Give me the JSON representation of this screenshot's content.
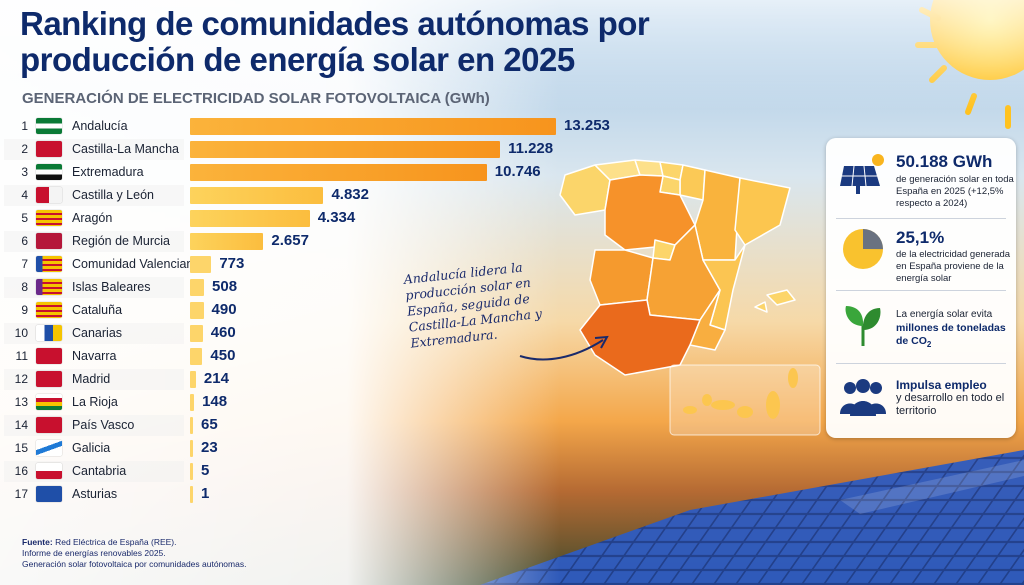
{
  "title": "Ranking de comunidades autónomas por producción de energía solar en 2025",
  "subtitle": "GENERACIÓN DE ELECTRICIDAD SOLAR FOTOVOLTAICA (GWh)",
  "chart_data": {
    "type": "bar",
    "orientation": "horizontal",
    "title": "Ranking de comunidades autónomas por producción de energía solar en 2025",
    "xlabel": "GENERACIÓN DE ELECTRICIDAD SOLAR FOTOVOLTAICA (GWh)",
    "categories": [
      "Andalucía",
      "Castilla-La Mancha",
      "Extremadura",
      "Castilla y León",
      "Aragón",
      "Región de Murcia",
      "Comunidad Valenciana",
      "Islas Baleares",
      "Cataluña",
      "Canarias",
      "Navarra",
      "Madrid",
      "La Rioja",
      "País Vasco",
      "Galicia",
      "Cantabria",
      "Asturias"
    ],
    "ranks": [
      "1",
      "2",
      "3",
      "4",
      "5",
      "6",
      "7",
      "8",
      "9",
      "10",
      "11",
      "12",
      "13",
      "14",
      "15",
      "16",
      "17"
    ],
    "values": [
      13253,
      11228,
      10746,
      4832,
      4334,
      2657,
      773,
      508,
      490,
      460,
      450,
      214,
      148,
      65,
      23,
      5,
      1
    ],
    "value_labels": [
      "13.253",
      "11.228",
      "10.746",
      "4.832",
      "4.334",
      "2.657",
      "773",
      "508",
      "490",
      "460",
      "450",
      "214",
      "148",
      "65",
      "23",
      "5",
      "1"
    ],
    "xlim": [
      0,
      13253
    ],
    "grid": false,
    "legend": "none"
  },
  "annotation": "Andalucía lidera la producción solar en España, seguida de Castilla-La Mancha y Extremadura.",
  "stats": {
    "total_value": "50.188 GWh",
    "total_desc": "de generación solar en toda España en 2025 (+12,5% respecto a 2024)",
    "share_value": "25,1%",
    "share_desc": "de la electricidad generada en España proviene de la energía solar",
    "share_fraction": 0.251,
    "co2_intro": "La energía solar evita",
    "co2_bold": "millones de toneladas de CO",
    "co2_sub": "2",
    "jobs_bold": "Impulsa empleo",
    "jobs_desc": "y desarrollo en todo el territorio"
  },
  "footer": {
    "label": "Fuente:",
    "source": "Red Eléctrica de España (REE).",
    "line2": "Informe de energías renovables 2025.",
    "line3": "Generación solar fotovoltaica por comunidades autónomas."
  },
  "icons": [
    "solar-panel-icon",
    "pie-chart-icon",
    "leaf-sprout-icon",
    "people-group-icon",
    "sun-icon"
  ],
  "colors": {
    "title": "#0e2a6b",
    "bar_top": "#f7941d",
    "bar_low": "#fdd35c",
    "accent": "#f08a1c"
  }
}
